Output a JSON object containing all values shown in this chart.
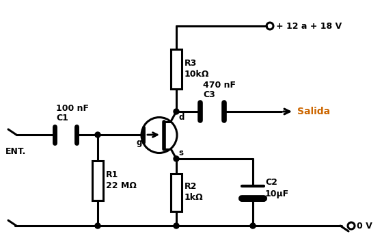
{
  "bg_color": "#ffffff",
  "line_color": "#000000",
  "salida_color": "#cc6600",
  "lw": 2.2,
  "components": {
    "C1": {
      "label": "C1",
      "sublabel": "100 nF"
    },
    "C2": {
      "label": "C2",
      "sublabel": "10μF"
    },
    "C3": {
      "label": "C3",
      "sublabel": "470 nF"
    },
    "R1": {
      "label": "R1",
      "sublabel": "22 MΩ"
    },
    "R2": {
      "label": "R2",
      "sublabel": "1kΩ"
    },
    "R3": {
      "label": "R3",
      "sublabel": "10kΩ"
    },
    "vcc": {
      "label": "+ 12 a + 18 V"
    },
    "gnd": {
      "label": "0 V"
    },
    "ent": {
      "label": "ENT."
    },
    "salida": {
      "label": "Salida"
    }
  }
}
